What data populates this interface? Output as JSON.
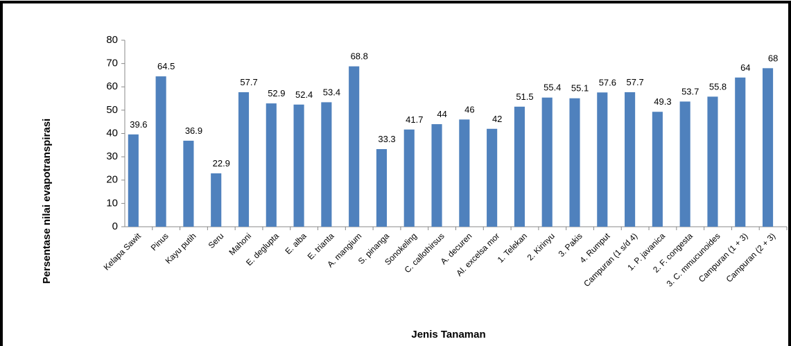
{
  "chart_data": {
    "type": "bar",
    "x_label": "Jenis Tanaman",
    "y_label": "Persentase nilai evapotranspirasi",
    "categories": [
      "Kelapa Sawit",
      "Pinus",
      "Kayu putih",
      "Seru",
      "Mahoni",
      "E. deglupta",
      "E. alba",
      "E. trianta",
      "A. mangium",
      "S. pinanga",
      "Sonokeling",
      "C. callothirsus",
      "A. decuren",
      "Al. excelsa mor",
      "1. Telekan",
      "2. Kirinyu",
      "3. Pakis",
      "4. Rumput",
      "Campuran (1 s/d 4)",
      "1. P. javanica",
      "2. F. congesta",
      "3. C. mmucunoides",
      "Campuran (1 + 3)",
      "Campuran (2 + 3)"
    ],
    "values": [
      39.6,
      64.5,
      36.9,
      22.9,
      57.7,
      52.9,
      52.4,
      53.4,
      68.8,
      33.3,
      41.7,
      44,
      46,
      42,
      51.5,
      55.4,
      55.1,
      57.6,
      57.7,
      49.3,
      53.7,
      55.8,
      64,
      68
    ],
    "color": "#4f81bd",
    "ylim": [
      0,
      80
    ],
    "yticks": [
      0,
      10,
      20,
      30,
      40,
      50,
      60,
      70,
      80
    ]
  }
}
